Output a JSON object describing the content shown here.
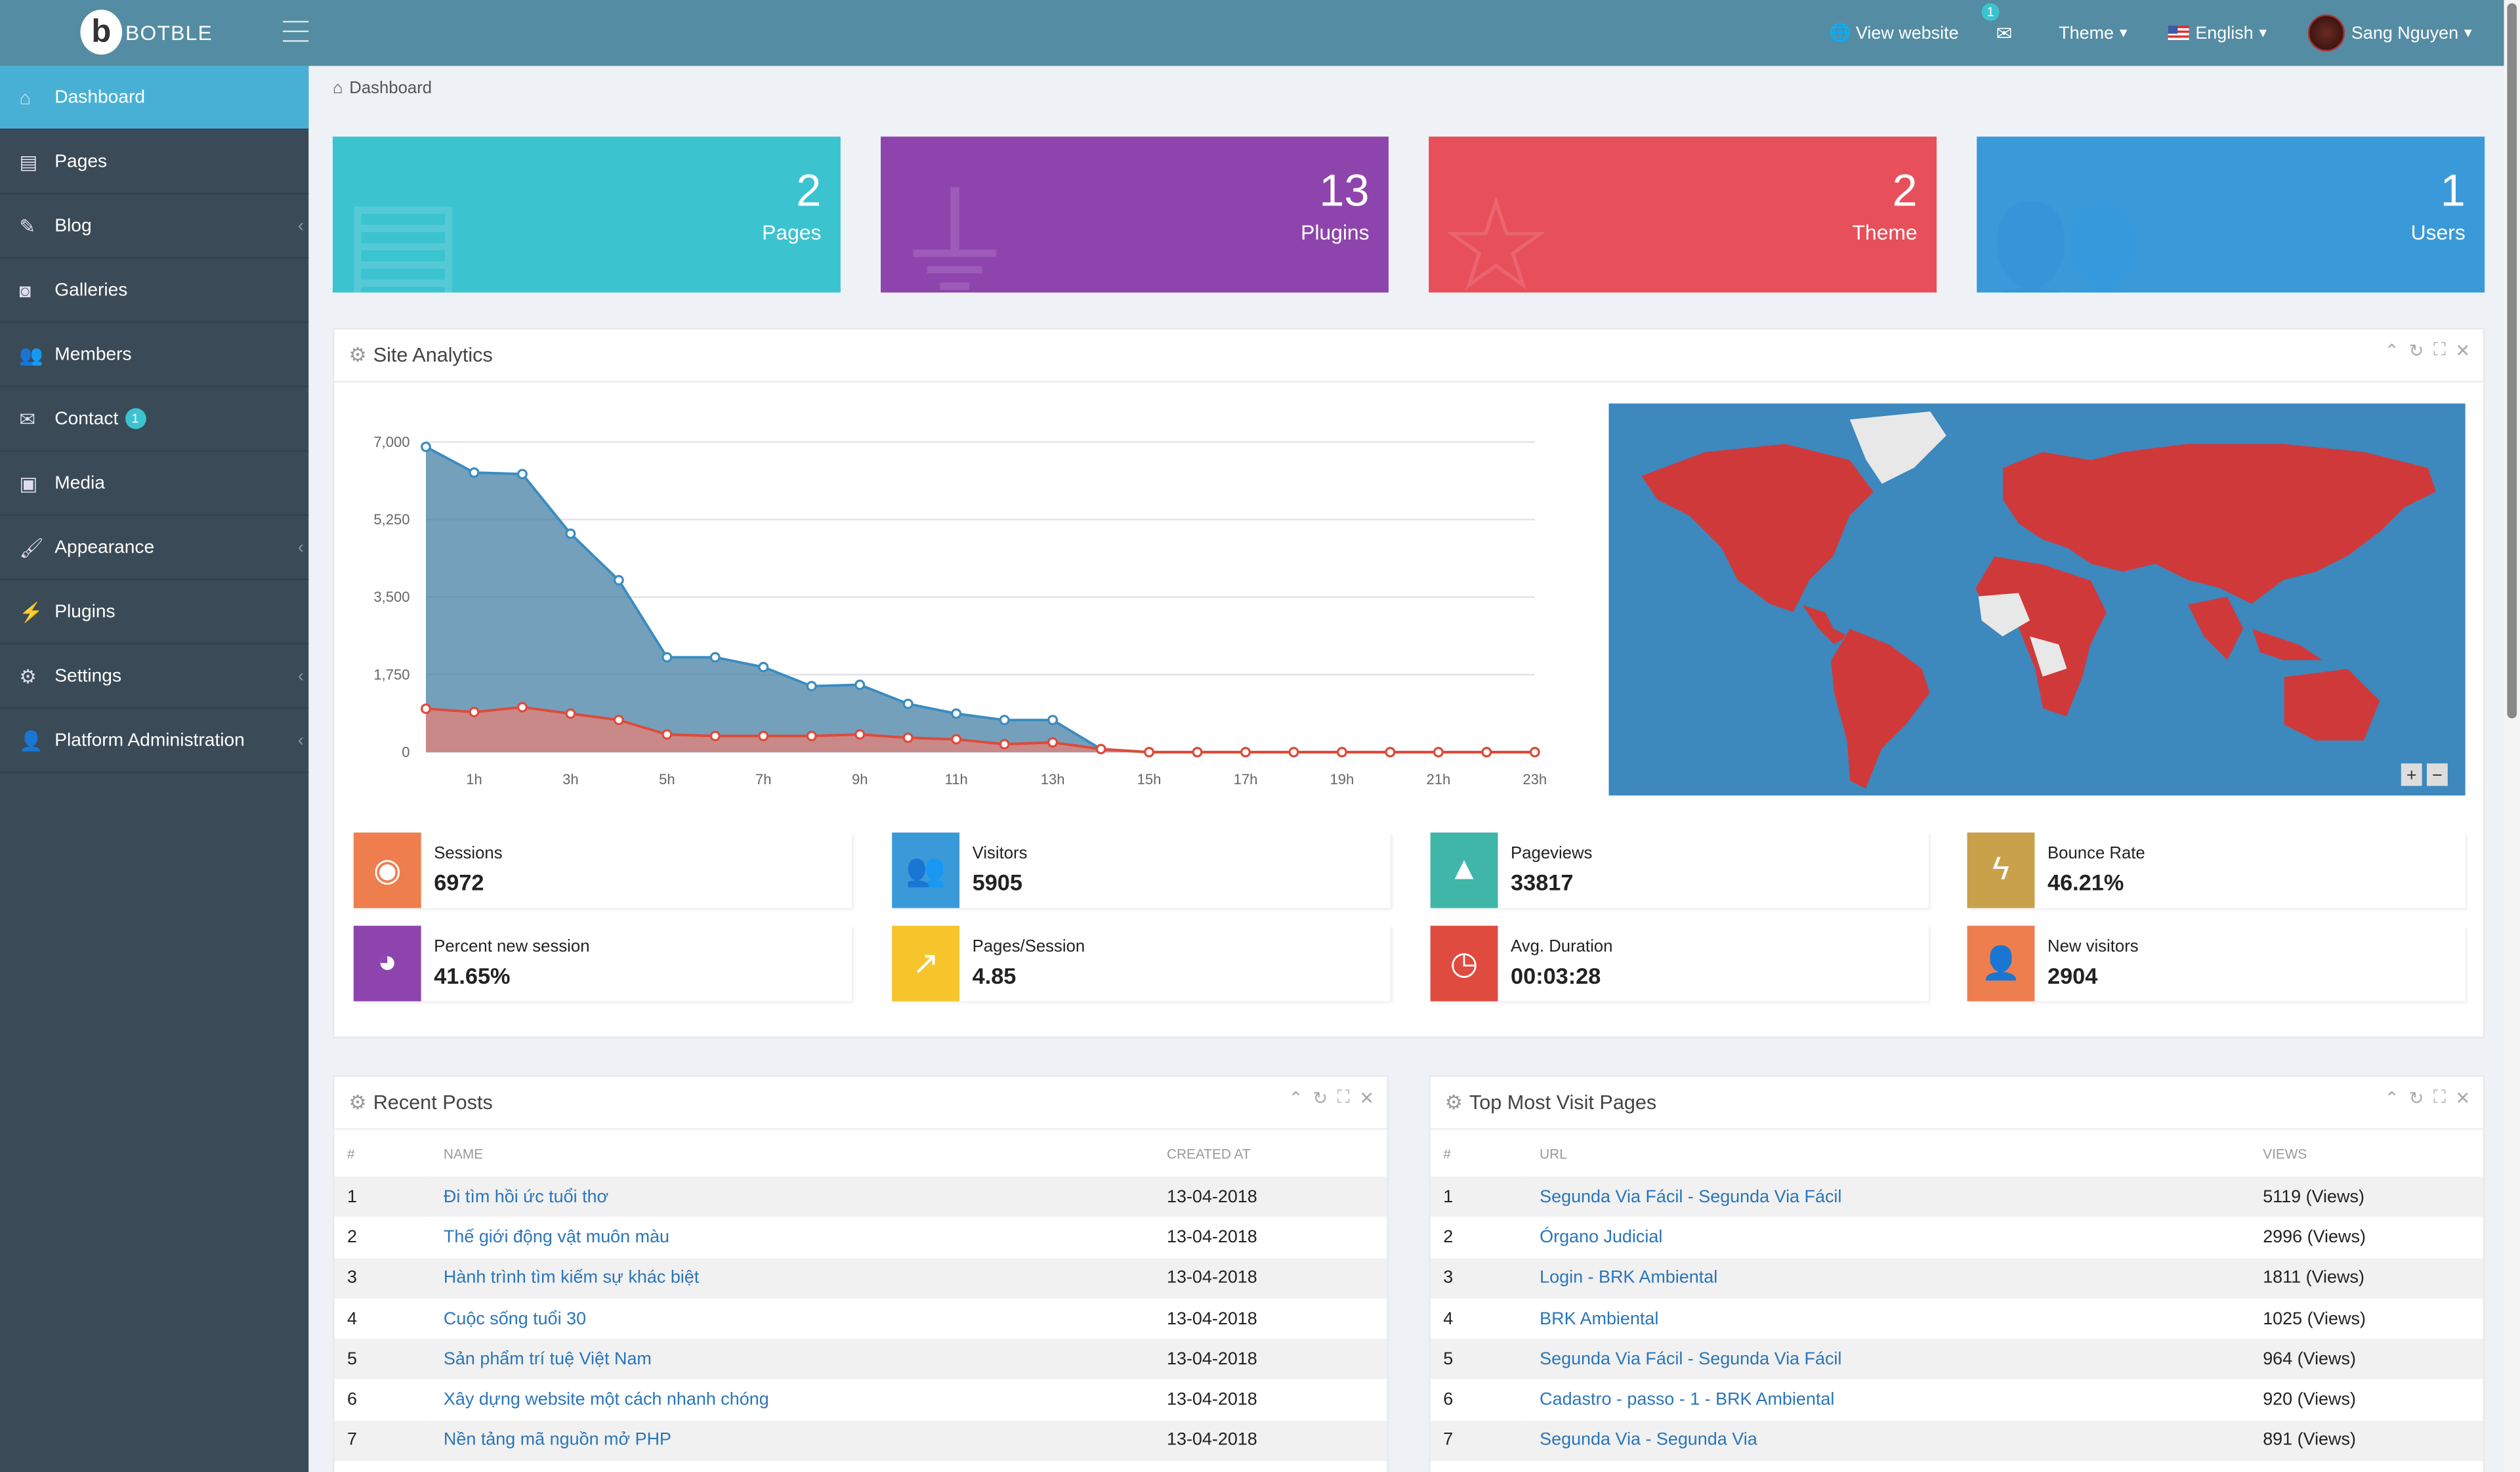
{
  "header": {
    "logo": "BOTBLE",
    "view_website": "View website",
    "notif_count": "1",
    "theme": "Theme",
    "language": "English",
    "user": "Sang Nguyen"
  },
  "sidebar": {
    "items": [
      {
        "label": "Dashboard",
        "icon": "home-icon",
        "g": "⌂"
      },
      {
        "label": "Pages",
        "icon": "book-icon",
        "g": "▤"
      },
      {
        "label": "Blog",
        "icon": "edit-icon",
        "g": "✎",
        "chev": true
      },
      {
        "label": "Galleries",
        "icon": "camera-icon",
        "g": "◙"
      },
      {
        "label": "Members",
        "icon": "users-icon",
        "g": "👥"
      },
      {
        "label": "Contact",
        "icon": "envelope-icon",
        "g": "✉",
        "badge": "1"
      },
      {
        "label": "Media",
        "icon": "images-icon",
        "g": "▣"
      },
      {
        "label": "Appearance",
        "icon": "brush-icon",
        "g": "🖌",
        "chev": true
      },
      {
        "label": "Plugins",
        "icon": "plug-icon",
        "g": "⚡"
      },
      {
        "label": "Settings",
        "icon": "gears-icon",
        "g": "⚙",
        "chev": true
      },
      {
        "label": "Platform Administration",
        "icon": "user-cog-icon",
        "g": "👤",
        "chev": true
      }
    ]
  },
  "breadcrumb": "Dashboard",
  "tiles": [
    {
      "num": "2",
      "label": "Pages",
      "color": "#3cc3d0",
      "g": "▤"
    },
    {
      "num": "13",
      "label": "Plugins",
      "color": "#8e44ad",
      "g": "⏚"
    },
    {
      "num": "2",
      "label": "Theme",
      "color": "#e74f5a",
      "g": "☆"
    },
    {
      "num": "1",
      "label": "Users",
      "color": "#3a9ad9",
      "g": "👥"
    }
  ],
  "analytics": {
    "title": "Site Analytics",
    "stats": [
      {
        "label": "Sessions",
        "value": "6972",
        "color": "#ef7e4e",
        "g": "◉",
        "icon": "eye-icon"
      },
      {
        "label": "Visitors",
        "value": "5905",
        "color": "#3a9ad9",
        "g": "👥",
        "icon": "users-icon"
      },
      {
        "label": "Pageviews",
        "value": "33817",
        "color": "#3fb6a8",
        "g": "▲",
        "icon": "traffic-cone-icon"
      },
      {
        "label": "Bounce Rate",
        "value": "46.21%",
        "color": "#c9a14a",
        "g": "ϟ",
        "icon": "bolt-icon"
      },
      {
        "label": "Percent new session",
        "value": "41.65%",
        "color": "#8e44ad",
        "g": "◕",
        "icon": "pie-chart-icon"
      },
      {
        "label": "Pages/Session",
        "value": "4.85",
        "color": "#f5c52b",
        "g": "↗",
        "icon": "line-chart-icon"
      },
      {
        "label": "Avg. Duration",
        "value": "00:03:28",
        "color": "#e04b3f",
        "g": "◷",
        "icon": "clock-icon"
      },
      {
        "label": "New visitors",
        "value": "2904",
        "color": "#ef7e4e",
        "g": "👤",
        "icon": "user-plus-icon"
      }
    ]
  },
  "chart_data": {
    "type": "area",
    "x": [
      "0h",
      "1h",
      "2h",
      "3h",
      "4h",
      "5h",
      "6h",
      "7h",
      "8h",
      "9h",
      "10h",
      "11h",
      "12h",
      "13h",
      "14h",
      "15h",
      "16h",
      "17h",
      "18h",
      "19h",
      "20h",
      "21h",
      "22h",
      "23h"
    ],
    "xticks": [
      "1h",
      "3h",
      "5h",
      "7h",
      "9h",
      "11h",
      "13h",
      "15h",
      "17h",
      "19h",
      "21h",
      "23h"
    ],
    "yticks": [
      "0",
      "1,750",
      "3,500",
      "5,250",
      "7,000"
    ],
    "ylim": [
      0,
      7000
    ],
    "series": [
      {
        "name": "Sessions",
        "color": "#3b8cc0",
        "values": [
          6890,
          6310,
          6275,
          4930,
          3880,
          2140,
          2140,
          1920,
          1490,
          1520,
          1090,
          870,
          725,
          725,
          70,
          0,
          0,
          0,
          0,
          0,
          0,
          0,
          0,
          0
        ]
      },
      {
        "name": "Visitors",
        "color": "#dd4b39",
        "values": [
          980,
          905,
          1015,
          870,
          725,
          400,
          365,
          365,
          365,
          400,
          325,
          290,
          180,
          220,
          70,
          0,
          0,
          0,
          0,
          0,
          0,
          0,
          0,
          0
        ]
      }
    ]
  },
  "recent_posts": {
    "title": "Recent Posts",
    "cols": [
      "#",
      "NAME",
      "CREATED AT"
    ],
    "rows": [
      [
        "1",
        "Đi tìm hồi ức tuổi thơ",
        "13-04-2018"
      ],
      [
        "2",
        "Thế giới động vật muôn màu",
        "13-04-2018"
      ],
      [
        "3",
        "Hành trình tìm kiếm sự khác biệt",
        "13-04-2018"
      ],
      [
        "4",
        "Cuộc sống tuổi 30",
        "13-04-2018"
      ],
      [
        "5",
        "Sản phẩm trí tuệ Việt Nam",
        "13-04-2018"
      ],
      [
        "6",
        "Xây dựng website một cách nhanh chóng",
        "13-04-2018"
      ],
      [
        "7",
        "Nền tảng mã nguồn mở PHP",
        "13-04-2018"
      ]
    ]
  },
  "top_pages": {
    "title": "Top Most Visit Pages",
    "cols": [
      "#",
      "URL",
      "VIEWS"
    ],
    "rows": [
      [
        "1",
        "Segunda Via Fácil - Segunda Via Fácil",
        "5119 (Views)"
      ],
      [
        "2",
        "Órgano Judicial",
        "2996 (Views)"
      ],
      [
        "3",
        "Login - BRK Ambiental",
        "1811 (Views)"
      ],
      [
        "4",
        "BRK Ambiental",
        "1025 (Views)"
      ],
      [
        "5",
        "Segunda Via Fácil - Segunda Via Fácil",
        "964 (Views)"
      ],
      [
        "6",
        "Cadastro - passo - 1 - BRK Ambiental",
        "920 (Views)"
      ],
      [
        "7",
        "Segunda Via - Segunda Via",
        "891 (Views)"
      ]
    ]
  }
}
